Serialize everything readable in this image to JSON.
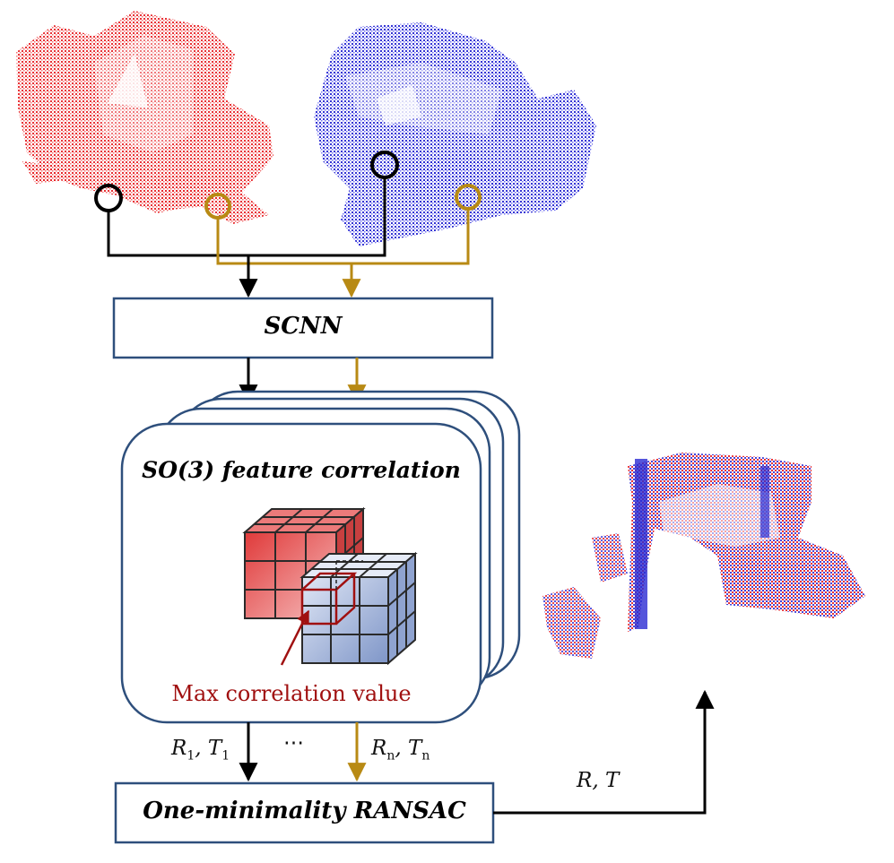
{
  "colors": {
    "source_cloud": "#e8272b",
    "target_cloud": "#2a2ad2",
    "path_black": "#000000",
    "path_gold": "#b88a14",
    "box_border": "#2e4f7c",
    "annotation": "#a01010"
  },
  "blocks": {
    "scnn": "SCNN",
    "correlation": "SO(3)  feature correlation",
    "ransac": "One-minimality RANSAC"
  },
  "annotation": "Max correlation value",
  "edge_labels": {
    "first_hypothesis": {
      "var1": "R",
      "sub1": "1",
      "var2": "T",
      "sub2": "1"
    },
    "ellipsis": "⋯",
    "last_hypothesis": {
      "var1": "R",
      "sub1": "n",
      "var2": "T",
      "sub2": "n"
    },
    "final": "R, T"
  }
}
